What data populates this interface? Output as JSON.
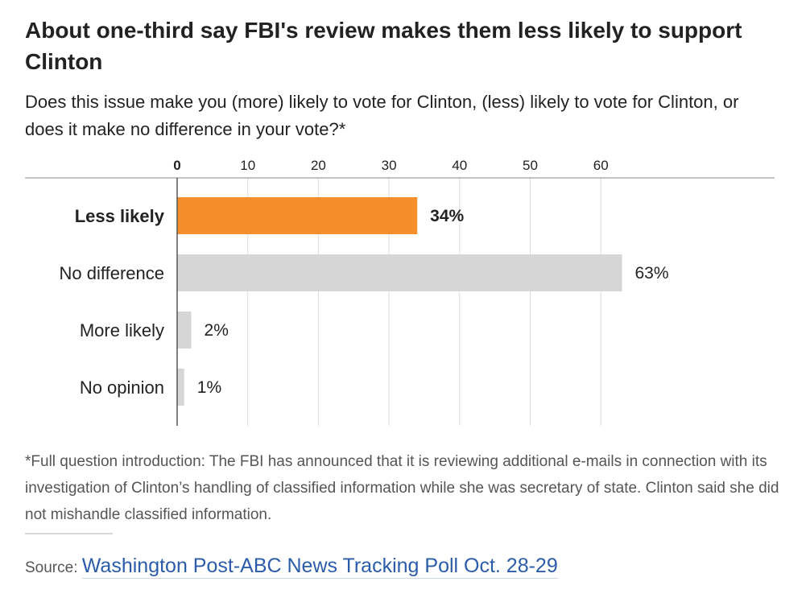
{
  "header": {
    "title": "About one-third say FBI's review makes them less likely to support Clinton",
    "subtitle": "Does this issue make you (more) likely to vote for Clinton, (less) likely to vote for Clinton, or does it make no difference in your vote?*"
  },
  "chart_data": {
    "type": "bar",
    "orientation": "horizontal",
    "categories": [
      "Less likely",
      "No difference",
      "More likely",
      "No opinion"
    ],
    "values": [
      34,
      63,
      2,
      1
    ],
    "value_labels": [
      "34%",
      "63%",
      "2%",
      "1%"
    ],
    "xlim": [
      0,
      63
    ],
    "x_ticks": [
      0,
      10,
      20,
      30,
      40,
      50,
      60
    ],
    "highlight_index": 0,
    "grid": true,
    "colors": {
      "highlight": "#f68e2b",
      "default": "#d6d6d6",
      "grid": "#dddddd",
      "axis": "#888888"
    }
  },
  "footnote": "*Full question introduction: The FBI has announced that it is reviewing additional e-mails in connection with its investigation of Clinton’s handling of classified information while she was secretary of state. Clinton said she did not mishandle classified information.",
  "source": {
    "label": "Source:",
    "link_text": "Washington Post-ABC News Tracking Poll Oct. 28-29"
  }
}
